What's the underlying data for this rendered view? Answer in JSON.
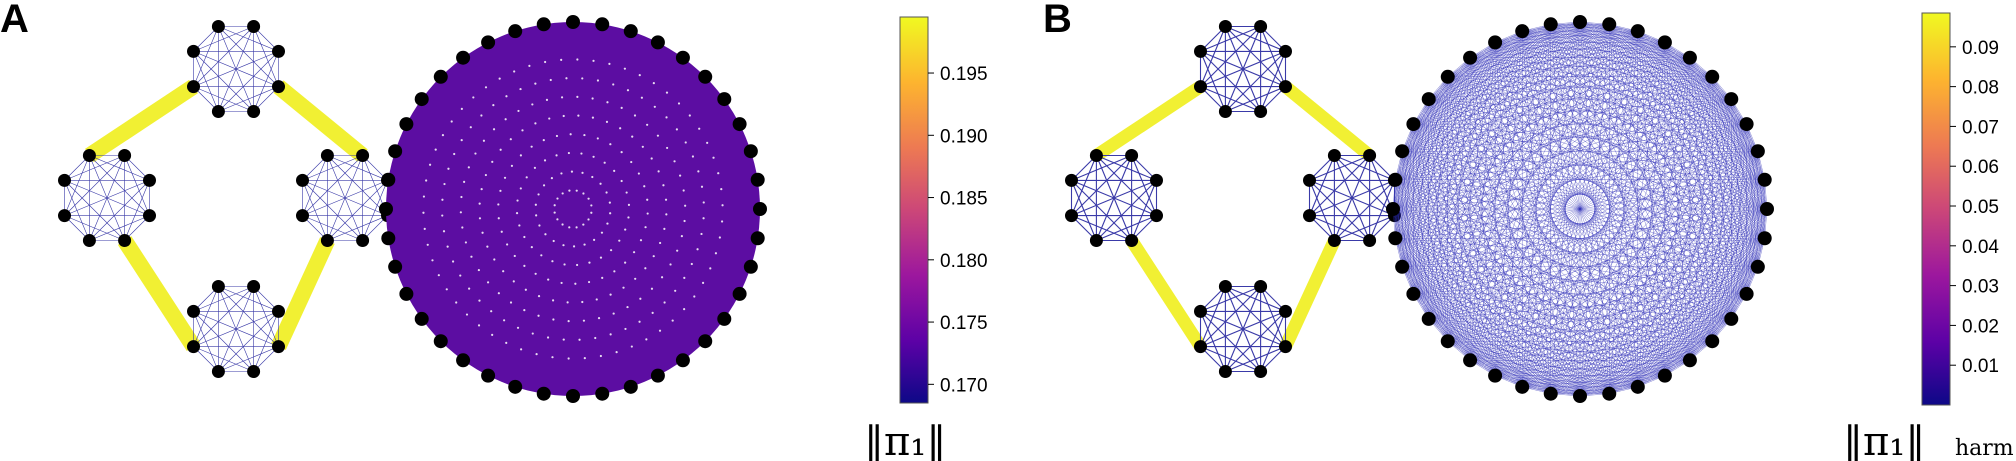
{
  "panels": [
    {
      "id": "A",
      "label": "A",
      "edge_coloring": "uniform",
      "bridge_color": "#f1f033",
      "circle_color": "#5c0da2",
      "colorbar": {
        "title_main": "‖π₁‖",
        "title_sub": "",
        "range": [
          0.1685,
          0.1995
        ],
        "ticks": [
          "0.170",
          "0.175",
          "0.180",
          "0.185",
          "0.190",
          "0.195"
        ],
        "tick_values": [
          0.17,
          0.175,
          0.18,
          0.185,
          0.19,
          0.195
        ]
      }
    },
    {
      "id": "B",
      "label": "B",
      "edge_coloring": "thin-lines",
      "bridge_color": "#f1f033",
      "circle_color": "#2f2fb8",
      "colorbar": {
        "title_main": "‖π₁‖",
        "title_sub": "harm",
        "range": [
          0.0,
          0.0985
        ],
        "ticks": [
          "0.01",
          "0.02",
          "0.03",
          "0.04",
          "0.05",
          "0.06",
          "0.07",
          "0.08",
          "0.09"
        ],
        "tick_values": [
          0.01,
          0.02,
          0.03,
          0.04,
          0.05,
          0.06,
          0.07,
          0.08,
          0.09
        ]
      }
    }
  ],
  "colors": {
    "node": "#000000",
    "clique_edge": "#3a3aa8",
    "colormap": [
      "#0d0887",
      "#5c01a6",
      "#9c179e",
      "#cc4778",
      "#ed7953",
      "#fdb42f",
      "#f0f921"
    ]
  }
}
